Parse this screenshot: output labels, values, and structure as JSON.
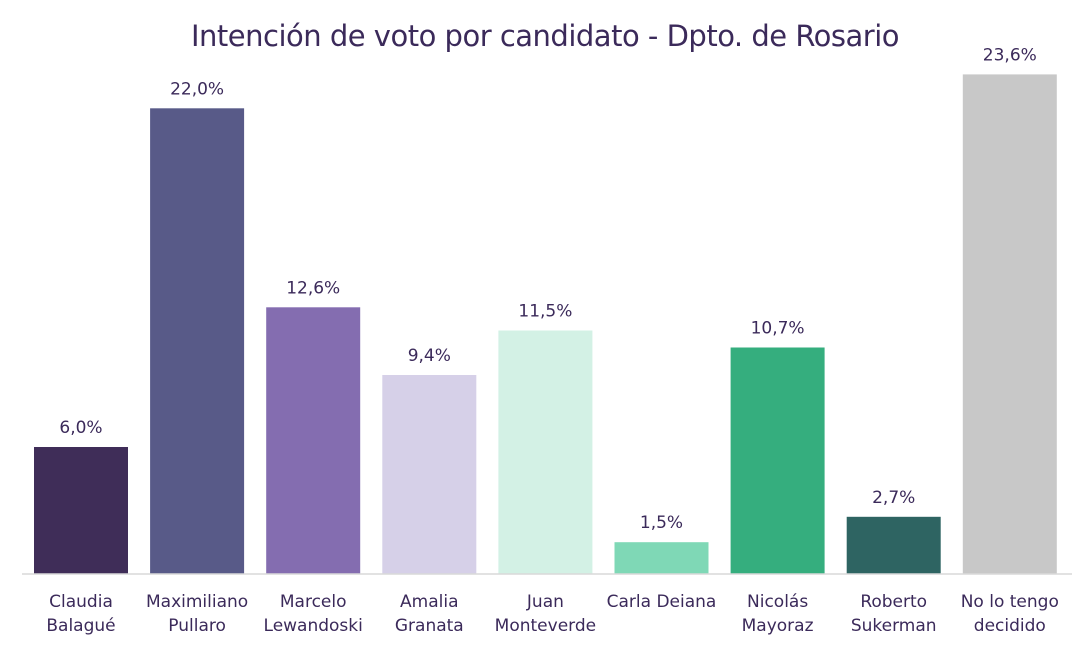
{
  "chart_data": {
    "type": "bar",
    "title": "Intención de voto por candidato - Dpto. de Rosario",
    "xlabel": "",
    "ylabel": "",
    "ylim": [
      0,
      25
    ],
    "grid": false,
    "legend": "none",
    "categories": [
      [
        "Claudia",
        "Balagué"
      ],
      [
        "Maximiliano",
        "Pullaro"
      ],
      [
        "Marcelo",
        "Lewandoski"
      ],
      [
        "Amalia",
        "Granata"
      ],
      [
        "Juan",
        "Monteverde"
      ],
      [
        "Carla Deiana"
      ],
      [
        "Nicolás",
        "Mayoraz"
      ],
      [
        "Roberto",
        "Sukerman"
      ],
      [
        "No lo tengo",
        "decidido"
      ]
    ],
    "values": [
      6.0,
      22.0,
      12.6,
      9.4,
      11.5,
      1.5,
      10.7,
      2.7,
      23.6
    ],
    "value_labels": [
      "6,0%",
      "22,0%",
      "12,6%",
      "9,4%",
      "11,5%",
      "1,5%",
      "10,7%",
      "2,7%",
      "23,6%"
    ],
    "colors": [
      "#3f2d58",
      "#585a88",
      "#846db0",
      "#d6d0e8",
      "#d3f1e5",
      "#7fd8b6",
      "#35ae7e",
      "#2e6462",
      "#c8c8c8"
    ],
    "axis_color": "#d9d9d9",
    "text_color": "#3b2a5a"
  }
}
